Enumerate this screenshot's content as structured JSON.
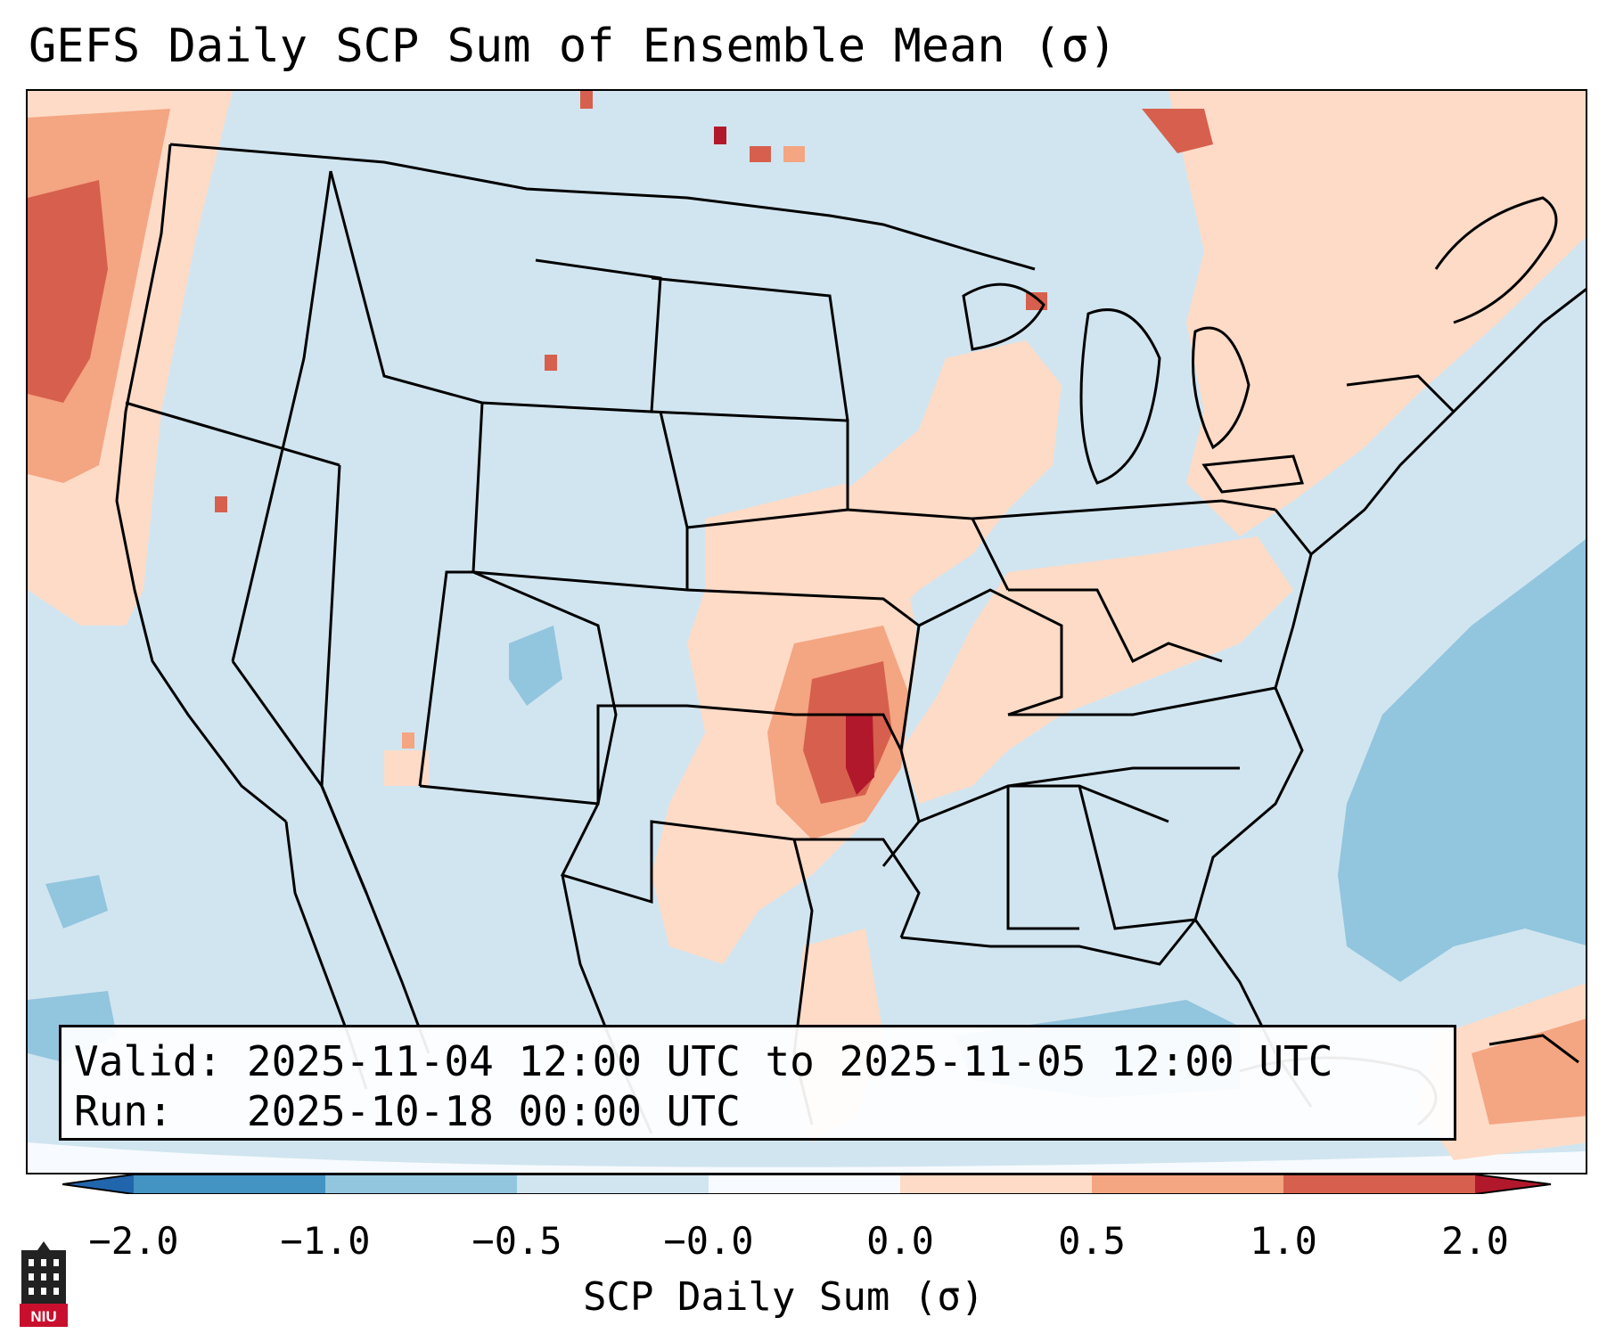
{
  "title": "GEFS Daily SCP Sum of Ensemble Mean (σ)",
  "info": {
    "valid_label": "Valid:",
    "valid_value": "2025-11-04 12:00 UTC to 2025-11-05 12:00 UTC",
    "run_label": "Run:",
    "run_value": "2025-10-18 00:00 UTC"
  },
  "colorbar": {
    "label": "SCP Daily Sum (σ)",
    "ticks": [
      "−2.0",
      "−1.0",
      "−0.5",
      "−0.0",
      "0.0",
      "0.5",
      "1.0",
      "2.0"
    ],
    "colors": {
      "below_min": "#2166ac",
      "c1": "#4393c3",
      "c2": "#92c5de",
      "c3": "#d1e5f0",
      "c4": "#f7fbff",
      "c5": "#fddbc7",
      "c6": "#f4a582",
      "c7": "#d6604d",
      "above_max": "#b2182b"
    }
  },
  "map": {
    "region": "Contiguous United States, southern Canada, northern Mexico, Gulf of Mexico and western Atlantic",
    "background_level": "-0.5 to -0.0",
    "maximum_area": "southern Kansas / Oklahoma, values 1.0 to 2.0+"
  },
  "logo": {
    "text": "NIU",
    "icon": "university-building-icon"
  }
}
